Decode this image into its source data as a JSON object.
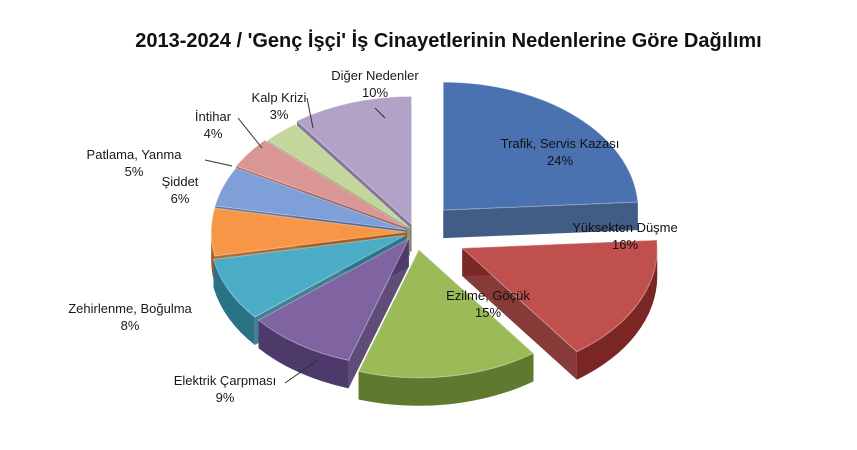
{
  "chart_data": {
    "type": "pie",
    "title": "2013-2024 / 'Genç İşçi' İş Cinayetlerinin Nedenlerine Göre Dağılımı",
    "slices": [
      {
        "name": "Trafik, Servis Kazası",
        "value": 24,
        "label": "24%",
        "color": "#4a72b0",
        "side": "#2c4a78"
      },
      {
        "name": "Yüksekten Düşme",
        "value": 16,
        "label": "16%",
        "color": "#c0504d",
        "side": "#7a2624"
      },
      {
        "name": "Ezilme, Göçük",
        "value": 15,
        "label": "15%",
        "color": "#9bbb59",
        "side": "#5f7a2e"
      },
      {
        "name": "Elektrik Çarpması",
        "value": 9,
        "label": "9%",
        "color": "#8064a2",
        "side": "#4e3a6a"
      },
      {
        "name": "Zehirlenme, Boğulma",
        "value": 8,
        "label": "8%",
        "color": "#4bacc6",
        "side": "#2a7387"
      },
      {
        "name": "Şiddet",
        "value": 6,
        "label": "6%",
        "color": "#f79646",
        "side": "#a85c1e"
      },
      {
        "name": "Patlama, Yanma",
        "value": 5,
        "label": "5%",
        "color": "#7f9fd8",
        "side": "#4e679a"
      },
      {
        "name": "İntihar",
        "value": 4,
        "label": "4%",
        "color": "#d99694",
        "side": "#9b5856"
      },
      {
        "name": "Kalp Krizi",
        "value": 3,
        "label": "3%",
        "color": "#c3d69b",
        "side": "#87a05c"
      },
      {
        "name": "Diğer Nedenler",
        "value": 10,
        "label": "10%",
        "color": "#b3a2c7",
        "side": "#76678d"
      }
    ]
  }
}
